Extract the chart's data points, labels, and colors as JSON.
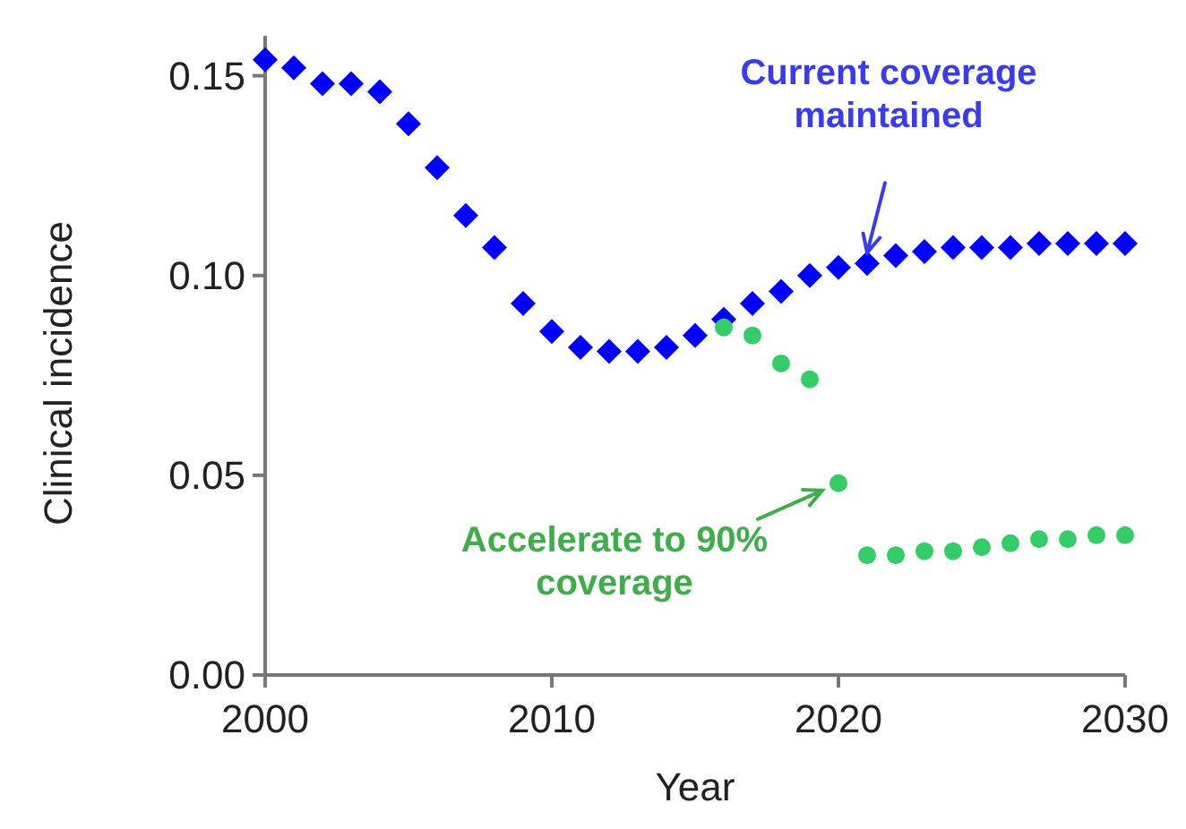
{
  "chart_data": {
    "type": "scatter",
    "xlabel": "Year",
    "ylabel": "Clinical incidence",
    "xlim": [
      2000,
      2030
    ],
    "xticks": [
      2000,
      2010,
      2020,
      2030
    ],
    "ylim": [
      0,
      0.16
    ],
    "yticks": [
      {
        "value": 0,
        "label": "0.00"
      },
      {
        "value": 0.05,
        "label": "0.05"
      },
      {
        "value": 0.1,
        "label": "0.10"
      },
      {
        "value": 0.15,
        "label": "0.15"
      }
    ],
    "grid": false,
    "series": [
      {
        "color": "#0000ff",
        "marker": "diamond",
        "x": [
          2000,
          2001,
          2002,
          2003,
          2004,
          2005,
          2006,
          2007,
          2008,
          2009,
          2010,
          2011,
          2012,
          2013,
          2014,
          2015,
          2016,
          2017,
          2018,
          2019,
          2020,
          2021,
          2022,
          2023,
          2024,
          2025,
          2026,
          2027,
          2028,
          2029,
          2030
        ],
        "values": [
          0.154,
          0.152,
          0.148,
          0.148,
          0.146,
          0.138,
          0.127,
          0.115,
          0.107,
          0.093,
          0.086,
          0.082,
          0.081,
          0.081,
          0.082,
          0.085,
          0.089,
          0.093,
          0.096,
          0.1,
          0.102,
          0.103,
          0.105,
          0.106,
          0.107,
          0.107,
          0.107,
          0.108,
          0.108,
          0.108,
          0.108
        ]
      },
      {
        "color": "#33cc66",
        "marker": "circle",
        "x": [
          2016,
          2017,
          2018,
          2019,
          2020,
          2021,
          2022,
          2023,
          2024,
          2025,
          2026,
          2027,
          2028,
          2029,
          2030
        ],
        "values": [
          0.087,
          0.085,
          0.078,
          0.074,
          0.048,
          0.03,
          0.03,
          0.031,
          0.031,
          0.032,
          0.033,
          0.034,
          0.034,
          0.035,
          0.035
        ]
      }
    ],
    "annotations": [
      {
        "text": "Current coverage maintained",
        "x": 2021,
        "y": 0.103
      },
      {
        "text": "Accelerate to 90% coverage",
        "x": 2020,
        "y": 0.048
      }
    ]
  }
}
